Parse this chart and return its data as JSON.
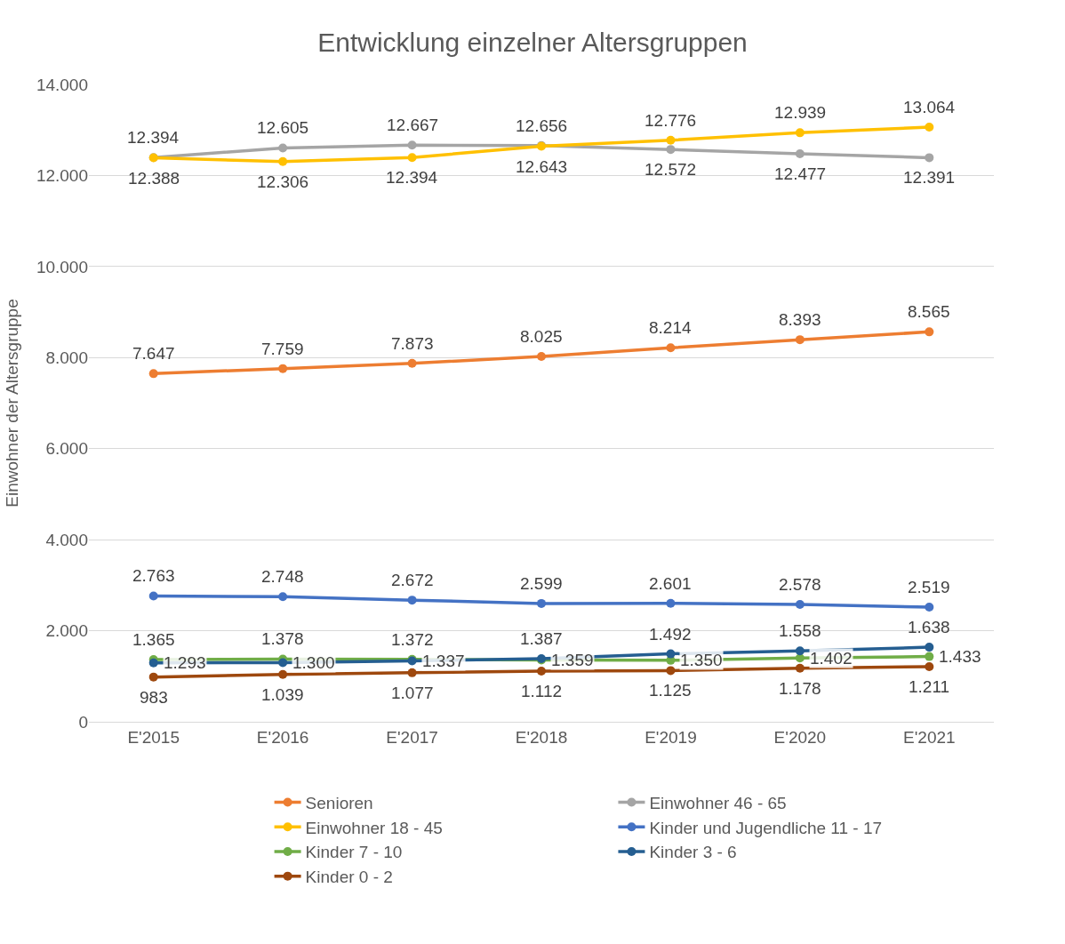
{
  "chart_data": {
    "type": "line",
    "title": "Entwicklung einzelner Altersgruppen",
    "ylabel": "Einwohner der Altersgruppe",
    "categories": [
      "E'2015",
      "E'2016",
      "E'2017",
      "E'2018",
      "E'2019",
      "E'2020",
      "E'2021"
    ],
    "series": [
      {
        "name": "Senioren",
        "color": "#ed7d31",
        "values": [
          7647,
          7759,
          7873,
          8025,
          8214,
          8393,
          8565
        ],
        "value_labels": [
          "7.647",
          "7.759",
          "7.873",
          "8.025",
          "8.214",
          "8.393",
          "8.565"
        ]
      },
      {
        "name": "Einwohner 46 - 65",
        "color": "#a5a5a5",
        "values": [
          12394,
          12605,
          12667,
          12656,
          12572,
          12477,
          12391
        ],
        "value_labels": [
          "12.394",
          "12.605",
          "12.667",
          "12.656",
          "12.572",
          "12.477",
          "12.391"
        ]
      },
      {
        "name": "Einwohner 18 - 45",
        "color": "#ffc000",
        "values": [
          12388,
          12306,
          12394,
          12643,
          12776,
          12939,
          13064
        ],
        "value_labels": [
          "12.388",
          "12.306",
          "12.394",
          "12.643",
          "12.776",
          "12.939",
          "13.064"
        ]
      },
      {
        "name": "Kinder und Jugendliche 11 - 17",
        "color": "#4472c4",
        "values": [
          2763,
          2748,
          2672,
          2599,
          2601,
          2578,
          2519
        ],
        "value_labels": [
          "2.763",
          "2.748",
          "2.672",
          "2.599",
          "2.601",
          "2.578",
          "2.519"
        ]
      },
      {
        "name": "Kinder 7 - 10",
        "color": "#70ad47",
        "values": [
          1365,
          1378,
          1372,
          1359,
          1350,
          1402,
          1433
        ],
        "value_labels": [
          "1.365",
          "1.378",
          "1.372",
          "1.359",
          "1.350",
          "1.402",
          "1.433"
        ]
      },
      {
        "name": "Kinder 3 - 6",
        "color": "#255e91",
        "values": [
          1293,
          1300,
          1337,
          1387,
          1492,
          1558,
          1638
        ],
        "value_labels": [
          "1.293",
          "1.300",
          "1.337",
          "1.387",
          "1.492",
          "1.558",
          "1.638"
        ]
      },
      {
        "name": "Kinder 0 - 2",
        "color": "#9e480e",
        "values": [
          983,
          1039,
          1077,
          1112,
          1125,
          1178,
          1211
        ],
        "value_labels": [
          "983",
          "1.039",
          "1.077",
          "1.112",
          "1.125",
          "1.178",
          "1.211"
        ]
      }
    ],
    "ylim": [
      0,
      14000
    ],
    "yticks": [
      0,
      {
        "value": 2000,
        "label": "2.000"
      },
      {
        "value": 4000,
        "label": "4.000"
      },
      {
        "value": 6000,
        "label": "6.000"
      },
      {
        "value": 8000,
        "label": "8.000"
      },
      {
        "value": 10000,
        "label": "10.000"
      },
      {
        "value": 12000,
        "label": "12.000"
      },
      {
        "value": 14000,
        "label": "14.000"
      }
    ],
    "grid": "y",
    "legend": "bottom",
    "marker": "circle",
    "line_style": "solid"
  }
}
